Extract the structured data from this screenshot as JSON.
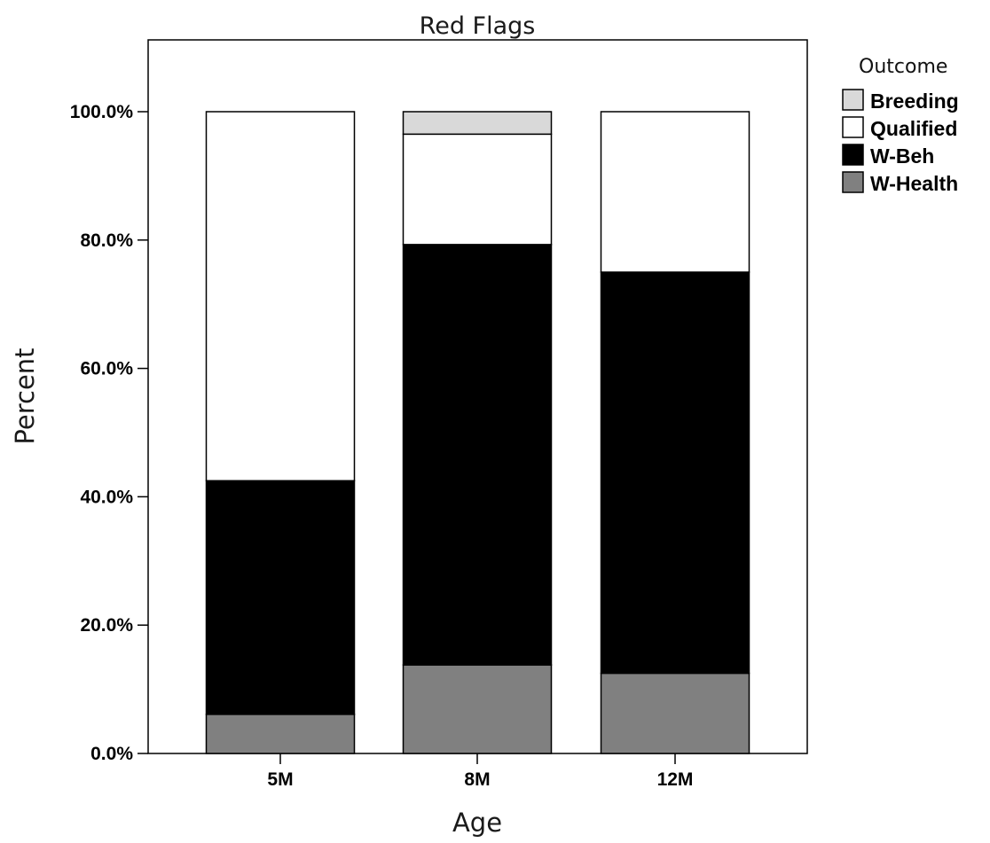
{
  "chart_data": {
    "type": "bar",
    "stacked": true,
    "title": "Red Flags",
    "xlabel": "Age",
    "ylabel": "Percent",
    "ylim": [
      0,
      110
    ],
    "yticks": [
      0,
      20,
      40,
      60,
      80,
      100
    ],
    "ytick_labels": [
      "0.0%",
      "20.0%",
      "40.0%",
      "60.0%",
      "80.0%",
      "100.0%"
    ],
    "categories": [
      "5M",
      "8M",
      "12M"
    ],
    "grid": false,
    "legend": {
      "title": "Outcome",
      "position": "right"
    },
    "series": [
      {
        "name": "W-Health",
        "color": "#808080",
        "values": [
          6.1,
          13.8,
          12.5
        ]
      },
      {
        "name": "W-Beh",
        "color": "#000000",
        "values": [
          36.4,
          65.5,
          62.5
        ]
      },
      {
        "name": "Qualified",
        "color": "#ffffff",
        "values": [
          57.5,
          17.2,
          25.0
        ]
      },
      {
        "name": "Breeding",
        "color": "#d9d9d9",
        "values": [
          0,
          3.5,
          0
        ]
      }
    ],
    "legend_order": [
      "Breeding",
      "Qualified",
      "W-Beh",
      "W-Health"
    ]
  }
}
